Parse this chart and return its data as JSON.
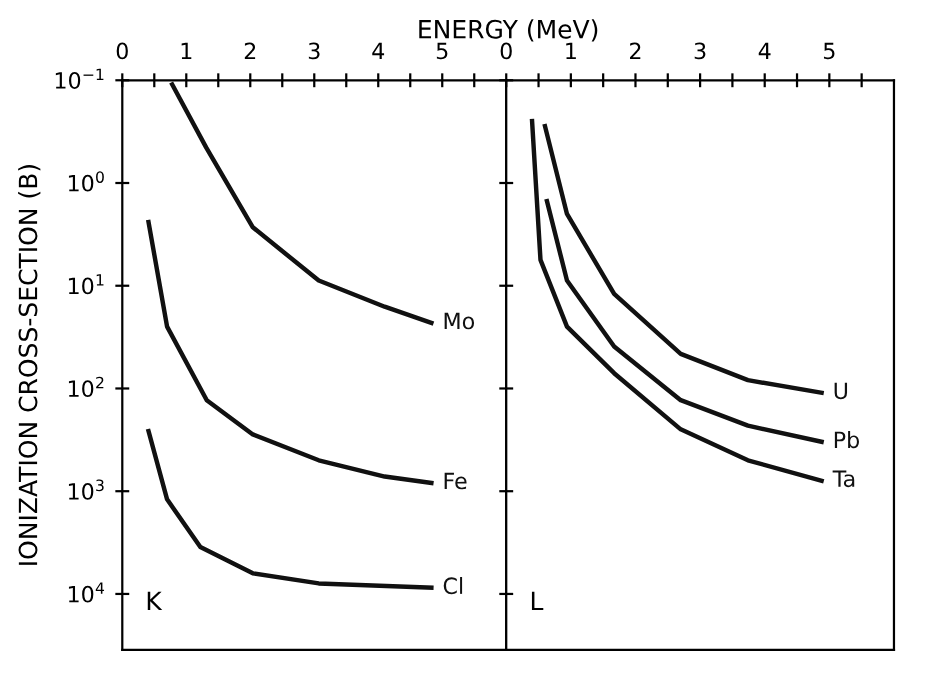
{
  "chart_data": [
    {
      "type": "line",
      "xlabel": "ENERGY (MeV)",
      "ylabel": "IONIZATION CROSS-SECTION (B)",
      "log": "y",
      "grid": false,
      "legend": false,
      "marker": "none",
      "line_style": "solid",
      "annotations": [
        "K"
      ],
      "xlim": [
        0,
        6
      ],
      "xticks": [
        0,
        {
          "value": 0.5,
          "label": null
        },
        1,
        {
          "value": 1.5,
          "label": null
        },
        2,
        {
          "value": 2.5,
          "label": null
        },
        3,
        {
          "value": 3.5,
          "label": null
        },
        4,
        {
          "value": 4.5,
          "label": null
        },
        5,
        {
          "value": 5.5,
          "label": null
        }
      ],
      "ylim": [
        35000,
        0.1
      ],
      "yticks": [
        {
          "value": 0.1,
          "label": "10$^{−1}$"
        },
        {
          "value": 1,
          "label": "10$^{0}$"
        },
        {
          "value": 10,
          "label": "10$^{1}$"
        },
        {
          "value": 100,
          "label": "10$^{2}$"
        },
        {
          "value": 1000,
          "label": "10$^{3}$"
        },
        {
          "value": 10000,
          "label": "10$^{4}$"
        }
      ],
      "series": [
        {
          "name": "Mo",
          "color": "#111111",
          "x": [
            0.78,
            1.31,
            2.04,
            3.07,
            4.1,
            4.83
          ],
          "values": [
            0.11,
            0.45,
            2.7,
            8.9,
            16,
            23
          ]
        },
        {
          "name": "Fe",
          "color": "#111111",
          "x": [
            0.41,
            0.7,
            1.32,
            2.04,
            3.07,
            4.1,
            4.83
          ],
          "values": [
            2.4,
            25,
            130,
            280,
            500,
            720,
            830
          ]
        },
        {
          "name": "Cl",
          "color": "#111111",
          "x": [
            0.41,
            0.7,
            1.22,
            2.04,
            3.07,
            4.83
          ],
          "values": [
            260,
            1200,
            3500,
            6300,
            7900,
            8700
          ]
        }
      ]
    },
    {
      "type": "line",
      "log": "y",
      "grid": false,
      "legend": false,
      "marker": "none",
      "line_style": "solid",
      "tick_labels": "x",
      "annotations": [
        "L"
      ],
      "xlim": [
        0,
        6
      ],
      "xticks": [
        0,
        {
          "value": 0.5,
          "label": null
        },
        1,
        {
          "value": 1.5,
          "label": null
        },
        2,
        {
          "value": 2.5,
          "label": null
        },
        3,
        {
          "value": 3.5,
          "label": null
        },
        4,
        {
          "value": 4.5,
          "label": null
        },
        5,
        {
          "value": 5.5,
          "label": null
        }
      ],
      "ylim": [
        35000,
        0.1
      ],
      "yticks": [
        {
          "value": 0.1,
          "label": null
        },
        {
          "value": 1,
          "label": null
        },
        {
          "value": 10,
          "label": null
        },
        {
          "value": 100,
          "label": null
        },
        {
          "value": 1000,
          "label": null
        },
        {
          "value": 10000,
          "label": null
        }
      ],
      "series": [
        {
          "name": "U",
          "color": "#111111",
          "x": [
            0.6,
            0.94,
            1.67,
            2.7,
            3.74,
            4.88
          ],
          "values": [
            0.28,
            2.0,
            12,
            46,
            83,
            110
          ]
        },
        {
          "name": "Pb",
          "color": "#111111",
          "x": [
            0.63,
            0.94,
            1.67,
            2.7,
            3.74,
            4.88
          ],
          "values": [
            1.5,
            8.9,
            39,
            130,
            230,
            330
          ]
        },
        {
          "name": "Ta",
          "color": "#111111",
          "x": [
            0.4,
            0.53,
            0.94,
            1.67,
            2.7,
            3.74,
            4.88
          ],
          "values": [
            0.25,
            5.6,
            25,
            71,
            250,
            500,
            790
          ]
        }
      ]
    }
  ]
}
